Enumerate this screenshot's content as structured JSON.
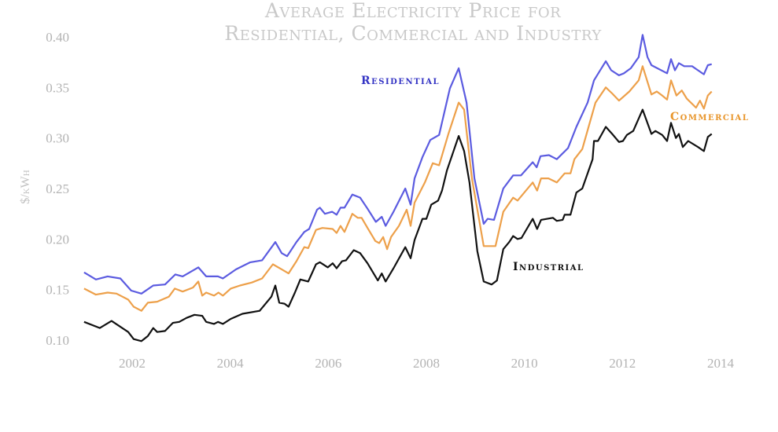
{
  "chart_data": {
    "type": "line",
    "title": [
      "Average Electricity Price for",
      "Residential, Commercial and Industry"
    ],
    "xlabel": "",
    "ylabel": "$/kWh",
    "xlim": [
      2001,
      2014
    ],
    "ylim": [
      0.09,
      0.4
    ],
    "x_ticks": [
      "2002",
      "2004",
      "2006",
      "2008",
      "2010",
      "2012",
      "2014"
    ],
    "y_ticks": [
      "0.10",
      "0.15",
      "0.20",
      "0.25",
      "0.30",
      "0.35",
      "0.40"
    ],
    "grid": false,
    "legend": "inline labels",
    "series": [
      {
        "name": "Residential",
        "color": "#5b5be0",
        "label_color": "#3434c4",
        "points": [
          [
            2001.02,
            0.167
          ],
          [
            2001.26,
            0.16
          ],
          [
            2001.5,
            0.163
          ],
          [
            2001.76,
            0.161
          ],
          [
            2001.98,
            0.149
          ],
          [
            2002.19,
            0.146
          ],
          [
            2002.43,
            0.154
          ],
          [
            2002.67,
            0.155
          ],
          [
            2002.88,
            0.165
          ],
          [
            2003.03,
            0.163
          ],
          [
            2003.35,
            0.172
          ],
          [
            2003.51,
            0.163
          ],
          [
            2003.75,
            0.163
          ],
          [
            2003.85,
            0.161
          ],
          [
            2004.12,
            0.17
          ],
          [
            2004.41,
            0.177
          ],
          [
            2004.65,
            0.179
          ],
          [
            2004.92,
            0.197
          ],
          [
            2005.05,
            0.186
          ],
          [
            2005.16,
            0.183
          ],
          [
            2005.35,
            0.197
          ],
          [
            2005.51,
            0.207
          ],
          [
            2005.61,
            0.21
          ],
          [
            2005.77,
            0.229
          ],
          [
            2005.83,
            0.231
          ],
          [
            2005.93,
            0.225
          ],
          [
            2006.08,
            0.227
          ],
          [
            2006.17,
            0.224
          ],
          [
            2006.25,
            0.231
          ],
          [
            2006.33,
            0.231
          ],
          [
            2006.49,
            0.244
          ],
          [
            2006.65,
            0.241
          ],
          [
            2006.8,
            0.23
          ],
          [
            2006.97,
            0.217
          ],
          [
            2007.09,
            0.222
          ],
          [
            2007.17,
            0.213
          ],
          [
            2007.33,
            0.227
          ],
          [
            2007.57,
            0.25
          ],
          [
            2007.68,
            0.234
          ],
          [
            2007.76,
            0.26
          ],
          [
            2007.92,
            0.281
          ],
          [
            2008.08,
            0.298
          ],
          [
            2008.26,
            0.303
          ],
          [
            2008.48,
            0.349
          ],
          [
            2008.66,
            0.369
          ],
          [
            2008.82,
            0.335
          ],
          [
            2008.98,
            0.26
          ],
          [
            2009.17,
            0.215
          ],
          [
            2009.25,
            0.22
          ],
          [
            2009.38,
            0.219
          ],
          [
            2009.57,
            0.25
          ],
          [
            2009.77,
            0.263
          ],
          [
            2009.93,
            0.263
          ],
          [
            2010.17,
            0.276
          ],
          [
            2010.25,
            0.271
          ],
          [
            2010.33,
            0.282
          ],
          [
            2010.5,
            0.283
          ],
          [
            2010.66,
            0.279
          ],
          [
            2010.89,
            0.29
          ],
          [
            2011.06,
            0.311
          ],
          [
            2011.29,
            0.335
          ],
          [
            2011.42,
            0.357
          ],
          [
            2011.66,
            0.376
          ],
          [
            2011.77,
            0.367
          ],
          [
            2011.93,
            0.362
          ],
          [
            2012.03,
            0.364
          ],
          [
            2012.17,
            0.369
          ],
          [
            2012.33,
            0.38
          ],
          [
            2012.41,
            0.402
          ],
          [
            2012.51,
            0.38
          ],
          [
            2012.59,
            0.372
          ],
          [
            2012.91,
            0.364
          ],
          [
            2012.99,
            0.378
          ],
          [
            2013.07,
            0.367
          ],
          [
            2013.15,
            0.374
          ],
          [
            2013.26,
            0.371
          ],
          [
            2013.42,
            0.371
          ],
          [
            2013.54,
            0.367
          ],
          [
            2013.66,
            0.363
          ],
          [
            2013.74,
            0.372
          ],
          [
            2013.82,
            0.373
          ]
        ]
      },
      {
        "name": "Commercial",
        "color": "#eda04a",
        "label_color": "#e8952a",
        "points": [
          [
            2001.02,
            0.151
          ],
          [
            2001.26,
            0.145
          ],
          [
            2001.5,
            0.147
          ],
          [
            2001.68,
            0.146
          ],
          [
            2001.92,
            0.14
          ],
          [
            2002.03,
            0.133
          ],
          [
            2002.19,
            0.129
          ],
          [
            2002.32,
            0.137
          ],
          [
            2002.51,
            0.138
          ],
          [
            2002.75,
            0.143
          ],
          [
            2002.87,
            0.151
          ],
          [
            2003.03,
            0.148
          ],
          [
            2003.24,
            0.152
          ],
          [
            2003.35,
            0.158
          ],
          [
            2003.43,
            0.144
          ],
          [
            2003.51,
            0.147
          ],
          [
            2003.67,
            0.144
          ],
          [
            2003.76,
            0.147
          ],
          [
            2003.85,
            0.144
          ],
          [
            2004.01,
            0.151
          ],
          [
            2004.2,
            0.154
          ],
          [
            2004.44,
            0.157
          ],
          [
            2004.65,
            0.161
          ],
          [
            2004.87,
            0.175
          ],
          [
            2005.05,
            0.17
          ],
          [
            2005.19,
            0.166
          ],
          [
            2005.35,
            0.178
          ],
          [
            2005.51,
            0.192
          ],
          [
            2005.59,
            0.191
          ],
          [
            2005.75,
            0.209
          ],
          [
            2005.88,
            0.211
          ],
          [
            2006.09,
            0.21
          ],
          [
            2006.17,
            0.206
          ],
          [
            2006.25,
            0.213
          ],
          [
            2006.33,
            0.207
          ],
          [
            2006.49,
            0.225
          ],
          [
            2006.6,
            0.221
          ],
          [
            2006.68,
            0.221
          ],
          [
            2006.8,
            0.211
          ],
          [
            2006.96,
            0.198
          ],
          [
            2007.04,
            0.196
          ],
          [
            2007.12,
            0.202
          ],
          [
            2007.2,
            0.19
          ],
          [
            2007.28,
            0.202
          ],
          [
            2007.44,
            0.213
          ],
          [
            2007.6,
            0.229
          ],
          [
            2007.68,
            0.213
          ],
          [
            2007.76,
            0.236
          ],
          [
            2007.97,
            0.256
          ],
          [
            2008.13,
            0.275
          ],
          [
            2008.26,
            0.273
          ],
          [
            2008.45,
            0.304
          ],
          [
            2008.66,
            0.335
          ],
          [
            2008.77,
            0.328
          ],
          [
            2008.93,
            0.26
          ],
          [
            2009.17,
            0.193
          ],
          [
            2009.41,
            0.193
          ],
          [
            2009.57,
            0.227
          ],
          [
            2009.77,
            0.241
          ],
          [
            2009.86,
            0.238
          ],
          [
            2010.17,
            0.256
          ],
          [
            2010.26,
            0.248
          ],
          [
            2010.34,
            0.26
          ],
          [
            2010.49,
            0.26
          ],
          [
            2010.66,
            0.256
          ],
          [
            2010.82,
            0.265
          ],
          [
            2010.94,
            0.265
          ],
          [
            2011.02,
            0.279
          ],
          [
            2011.18,
            0.289
          ],
          [
            2011.45,
            0.335
          ],
          [
            2011.66,
            0.35
          ],
          [
            2011.79,
            0.344
          ],
          [
            2011.93,
            0.337
          ],
          [
            2012.14,
            0.346
          ],
          [
            2012.33,
            0.357
          ],
          [
            2012.41,
            0.371
          ],
          [
            2012.59,
            0.343
          ],
          [
            2012.7,
            0.346
          ],
          [
            2012.81,
            0.342
          ],
          [
            2012.91,
            0.338
          ],
          [
            2012.99,
            0.357
          ],
          [
            2013.1,
            0.342
          ],
          [
            2013.21,
            0.347
          ],
          [
            2013.31,
            0.339
          ],
          [
            2013.5,
            0.33
          ],
          [
            2013.58,
            0.337
          ],
          [
            2013.66,
            0.329
          ],
          [
            2013.74,
            0.342
          ],
          [
            2013.82,
            0.346
          ]
        ]
      },
      {
        "name": "Industrial",
        "color": "#111111",
        "label_color": "#111111",
        "points": [
          [
            2001.02,
            0.118
          ],
          [
            2001.34,
            0.112
          ],
          [
            2001.58,
            0.119
          ],
          [
            2001.92,
            0.108
          ],
          [
            2002.03,
            0.101
          ],
          [
            2002.19,
            0.099
          ],
          [
            2002.32,
            0.104
          ],
          [
            2002.43,
            0.112
          ],
          [
            2002.51,
            0.108
          ],
          [
            2002.67,
            0.109
          ],
          [
            2002.83,
            0.117
          ],
          [
            2002.96,
            0.118
          ],
          [
            2003.11,
            0.122
          ],
          [
            2003.27,
            0.125
          ],
          [
            2003.43,
            0.124
          ],
          [
            2003.51,
            0.118
          ],
          [
            2003.67,
            0.116
          ],
          [
            2003.75,
            0.118
          ],
          [
            2003.85,
            0.116
          ],
          [
            2004.01,
            0.121
          ],
          [
            2004.25,
            0.126
          ],
          [
            2004.6,
            0.129
          ],
          [
            2004.84,
            0.143
          ],
          [
            2004.92,
            0.154
          ],
          [
            2005.0,
            0.137
          ],
          [
            2005.11,
            0.136
          ],
          [
            2005.19,
            0.133
          ],
          [
            2005.32,
            0.147
          ],
          [
            2005.43,
            0.16
          ],
          [
            2005.59,
            0.158
          ],
          [
            2005.75,
            0.175
          ],
          [
            2005.83,
            0.177
          ],
          [
            2005.99,
            0.172
          ],
          [
            2006.09,
            0.176
          ],
          [
            2006.17,
            0.171
          ],
          [
            2006.28,
            0.178
          ],
          [
            2006.36,
            0.179
          ],
          [
            2006.52,
            0.189
          ],
          [
            2006.65,
            0.186
          ],
          [
            2006.8,
            0.176
          ],
          [
            2007.01,
            0.159
          ],
          [
            2007.09,
            0.166
          ],
          [
            2007.17,
            0.158
          ],
          [
            2007.33,
            0.171
          ],
          [
            2007.57,
            0.192
          ],
          [
            2007.68,
            0.181
          ],
          [
            2007.76,
            0.199
          ],
          [
            2007.92,
            0.22
          ],
          [
            2008.0,
            0.22
          ],
          [
            2008.1,
            0.234
          ],
          [
            2008.24,
            0.238
          ],
          [
            2008.32,
            0.248
          ],
          [
            2008.42,
            0.268
          ],
          [
            2008.66,
            0.302
          ],
          [
            2008.77,
            0.287
          ],
          [
            2008.88,
            0.256
          ],
          [
            2009.04,
            0.188
          ],
          [
            2009.17,
            0.158
          ],
          [
            2009.33,
            0.155
          ],
          [
            2009.44,
            0.159
          ],
          [
            2009.57,
            0.19
          ],
          [
            2009.69,
            0.197
          ],
          [
            2009.77,
            0.203
          ],
          [
            2009.86,
            0.2
          ],
          [
            2009.94,
            0.201
          ],
          [
            2010.17,
            0.22
          ],
          [
            2010.26,
            0.21
          ],
          [
            2010.34,
            0.219
          ],
          [
            2010.58,
            0.221
          ],
          [
            2010.66,
            0.218
          ],
          [
            2010.78,
            0.219
          ],
          [
            2010.82,
            0.224
          ],
          [
            2010.94,
            0.224
          ],
          [
            2011.06,
            0.246
          ],
          [
            2011.18,
            0.25
          ],
          [
            2011.39,
            0.279
          ],
          [
            2011.42,
            0.297
          ],
          [
            2011.5,
            0.297
          ],
          [
            2011.66,
            0.311
          ],
          [
            2011.79,
            0.304
          ],
          [
            2011.93,
            0.296
          ],
          [
            2012.01,
            0.297
          ],
          [
            2012.09,
            0.303
          ],
          [
            2012.22,
            0.307
          ],
          [
            2012.41,
            0.328
          ],
          [
            2012.59,
            0.304
          ],
          [
            2012.67,
            0.307
          ],
          [
            2012.81,
            0.303
          ],
          [
            2012.91,
            0.297
          ],
          [
            2012.99,
            0.315
          ],
          [
            2013.09,
            0.3
          ],
          [
            2013.15,
            0.304
          ],
          [
            2013.23,
            0.291
          ],
          [
            2013.34,
            0.297
          ],
          [
            2013.54,
            0.291
          ],
          [
            2013.66,
            0.287
          ],
          [
            2013.74,
            0.301
          ],
          [
            2013.82,
            0.304
          ]
        ]
      }
    ]
  }
}
